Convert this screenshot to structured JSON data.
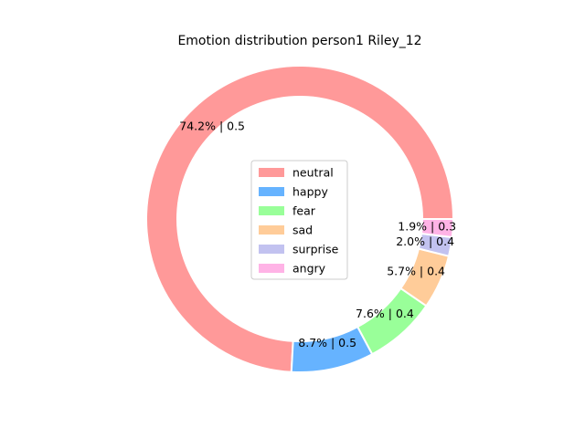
{
  "chart_data": {
    "type": "pie",
    "title": "Emotion distribution person1 Riley_12",
    "donut": true,
    "legend_position": "center",
    "slices": [
      {
        "name": "neutral",
        "percent": 74.2,
        "score": "0.5",
        "label": "74.2% | 0.5",
        "color": "#ff9999"
      },
      {
        "name": "happy",
        "percent": 8.7,
        "score": "0.5",
        "label": "8.7% | 0.5",
        "color": "#66b3ff"
      },
      {
        "name": "fear",
        "percent": 7.6,
        "score": "0.4",
        "label": "7.6% | 0.4",
        "color": "#99ff99"
      },
      {
        "name": "sad",
        "percent": 5.7,
        "score": "0.4",
        "label": "5.7% | 0.4",
        "color": "#ffcc99"
      },
      {
        "name": "surprise",
        "percent": 2.0,
        "score": "0.4",
        "label": "2.0% | 0.4",
        "color": "#c2c2f0"
      },
      {
        "name": "angry",
        "percent": 1.9,
        "score": "0.3",
        "label": "1.9% | 0.3",
        "color": "#ffb3e6"
      }
    ]
  }
}
